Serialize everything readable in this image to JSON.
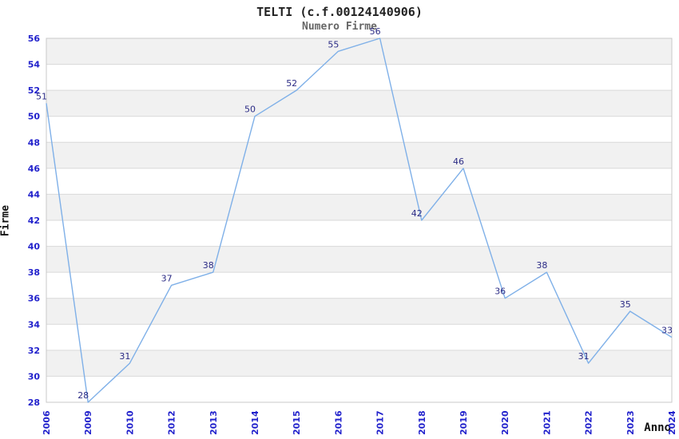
{
  "title": "TELTI (c.f.00124140906)",
  "subtitle": "Numero Firme",
  "chart_data": {
    "type": "line",
    "title": "TELTI (c.f.00124140906)",
    "subtitle": "Numero Firme",
    "xlabel": "Anno",
    "ylabel": "Firme",
    "categories": [
      "2006",
      "2009",
      "2010",
      "2012",
      "2013",
      "2014",
      "2015",
      "2016",
      "2017",
      "2018",
      "2019",
      "2020",
      "2021",
      "2022",
      "2023",
      "2024"
    ],
    "values": [
      51,
      28,
      31,
      37,
      38,
      50,
      52,
      55,
      56,
      42,
      46,
      36,
      38,
      31,
      35,
      33
    ],
    "ylim": [
      28,
      56
    ],
    "ytick_step": 2,
    "grid": true,
    "legend_position": "none",
    "colors": {
      "line": "#7fb0e8",
      "tick_labels": "#2222cc",
      "data_labels": "#2b2b85",
      "band_fill": "#f1f1f1",
      "gridline": "#d9d9d9",
      "plot_border": "#c9c9c9",
      "title": "#222222",
      "subtitle": "#666666",
      "axis_titles": "#111111"
    }
  }
}
